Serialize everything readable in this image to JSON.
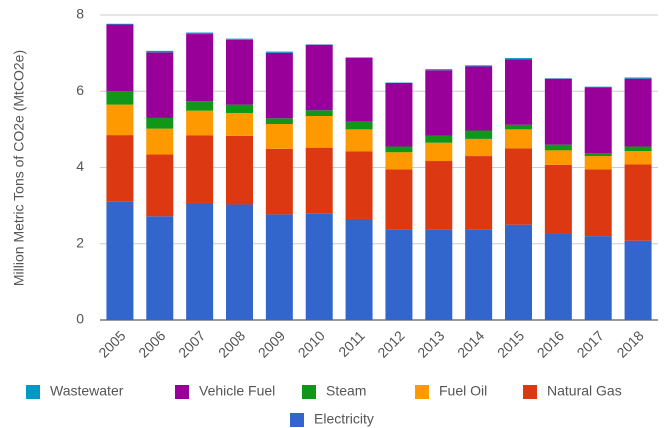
{
  "chart_data": {
    "type": "stacked_bar",
    "y_label": "Million Metric Tons of CO2e (MtCO2e)",
    "categories": [
      "2005",
      "2006",
      "2007",
      "2008",
      "2009",
      "2010",
      "2011",
      "2012",
      "2013",
      "2014",
      "2015",
      "2016",
      "2017",
      "2018"
    ],
    "ylim": [
      0,
      8
    ],
    "yticks": [
      0,
      2,
      4,
      6,
      8
    ],
    "grid": true,
    "series": [
      {
        "name": "Wastewater",
        "color": "#0099c6",
        "values": [
          0.02,
          0.04,
          0.04,
          0.03,
          0.03,
          0.01,
          0.01,
          0.01,
          0.03,
          0.03,
          0.03,
          0.01,
          0.02,
          0.03
        ]
      },
      {
        "name": "Vehicle Fuel",
        "color": "#990099",
        "values": [
          1.75,
          1.72,
          1.76,
          1.7,
          1.72,
          1.72,
          1.68,
          1.67,
          1.72,
          1.68,
          1.72,
          1.73,
          1.72,
          1.78
        ]
      },
      {
        "name": "Steam",
        "color": "#109618",
        "values": [
          0.35,
          0.28,
          0.25,
          0.22,
          0.15,
          0.15,
          0.2,
          0.15,
          0.18,
          0.22,
          0.12,
          0.15,
          0.08,
          0.12
        ]
      },
      {
        "name": "Fuel Oil",
        "color": "#ff9900",
        "values": [
          0.8,
          0.68,
          0.65,
          0.6,
          0.65,
          0.83,
          0.58,
          0.45,
          0.48,
          0.45,
          0.5,
          0.38,
          0.35,
          0.35
        ]
      },
      {
        "name": "Natural Gas",
        "color": "#dc3912",
        "values": [
          1.75,
          1.62,
          1.77,
          1.8,
          1.72,
          1.72,
          1.77,
          1.58,
          1.8,
          1.93,
          2.0,
          1.8,
          1.75,
          2.0
        ]
      },
      {
        "name": "Electricity",
        "color": "#3366cc",
        "values": [
          3.1,
          2.72,
          3.07,
          3.03,
          2.77,
          2.8,
          2.65,
          2.37,
          2.37,
          2.37,
          2.5,
          2.27,
          2.2,
          2.08
        ]
      }
    ]
  }
}
